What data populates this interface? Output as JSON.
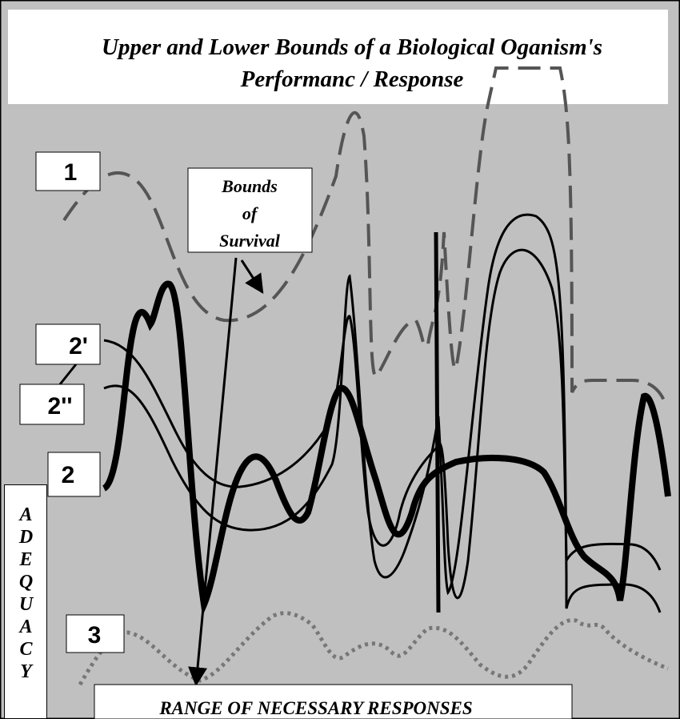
{
  "title": [
    "Upper and Lower Bounds of a Biological Oganism's",
    "Performanc / Response"
  ],
  "labels": {
    "curve_1": "1",
    "curve_2_prime": "2'",
    "curve_2_double_prime": "2''",
    "curve_2": "2",
    "curve_3": "3"
  },
  "bounds_label": [
    "Bounds",
    "of",
    "Survival"
  ],
  "y_axis_label": "ADEQUACY",
  "bottom_label": "RANGE OF NECESSARY RESPONSES"
}
